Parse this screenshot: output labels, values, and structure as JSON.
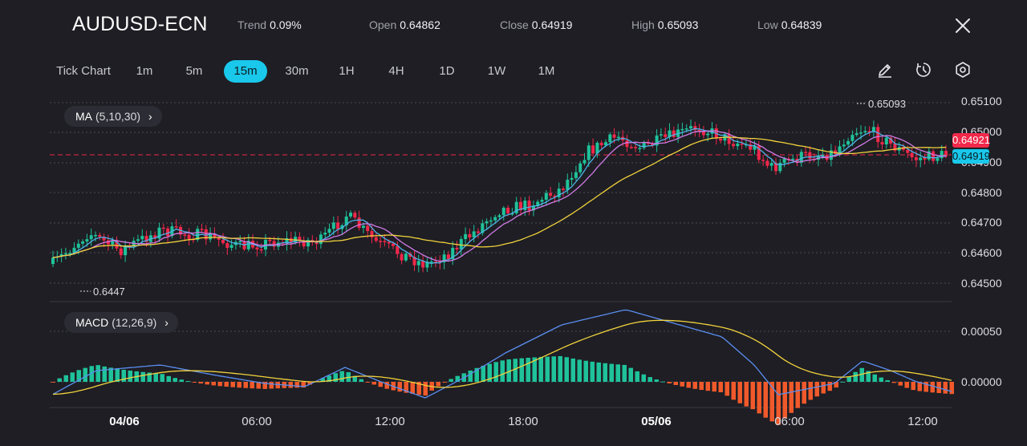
{
  "header": {
    "symbol": "AUDUSD-ECN",
    "stats": [
      {
        "label": "Trend",
        "value": "0.09%"
      },
      {
        "label": "Open",
        "value": "0.64862"
      },
      {
        "label": "Close",
        "value": "0.64919"
      },
      {
        "label": "High",
        "value": "0.65093"
      },
      {
        "label": "Low",
        "value": "0.64839"
      }
    ]
  },
  "timeframes": [
    "Tick Chart",
    "1m",
    "5m",
    "15m",
    "30m",
    "1H",
    "4H",
    "1D",
    "1W",
    "1M"
  ],
  "active_timeframe": "15m",
  "tools": [
    "pencil-icon",
    "timer-icon",
    "settings-icon"
  ],
  "indicators": {
    "ma": {
      "name": "MA",
      "params": "(5,10,30)"
    },
    "macd": {
      "name": "MACD",
      "params": "(12,26,9)"
    }
  },
  "price_axis": [
    "0.65100",
    "0.65000",
    "0.64900",
    "0.64800",
    "0.64700",
    "0.64600",
    "0.64500"
  ],
  "macd_axis": [
    "0.00050",
    "0.00000"
  ],
  "time_axis": [
    {
      "label": "04/06",
      "bold": true
    },
    {
      "label": "06:00",
      "bold": false
    },
    {
      "label": "12:00",
      "bold": false
    },
    {
      "label": "18:00",
      "bold": false
    },
    {
      "label": "05/06",
      "bold": true
    },
    {
      "label": "06:00",
      "bold": false
    },
    {
      "label": "12:00",
      "bold": false
    }
  ],
  "price_tags": {
    "high_ref": "0.64921",
    "last": "0.64919"
  },
  "extremes": {
    "high": "0.65093",
    "low": "0.6447"
  },
  "colors": {
    "up": "#1fc29a",
    "down": "#f0284a",
    "ma5": "#4fb3e8",
    "ma10": "#d17be6",
    "ma30": "#f2d23c",
    "macd_line": "#5b8ef0",
    "signal_line": "#f2d23c",
    "hist_pos": "#1fc29a",
    "hist_neg": "#f0592b",
    "accent": "#19c8ea"
  }
}
